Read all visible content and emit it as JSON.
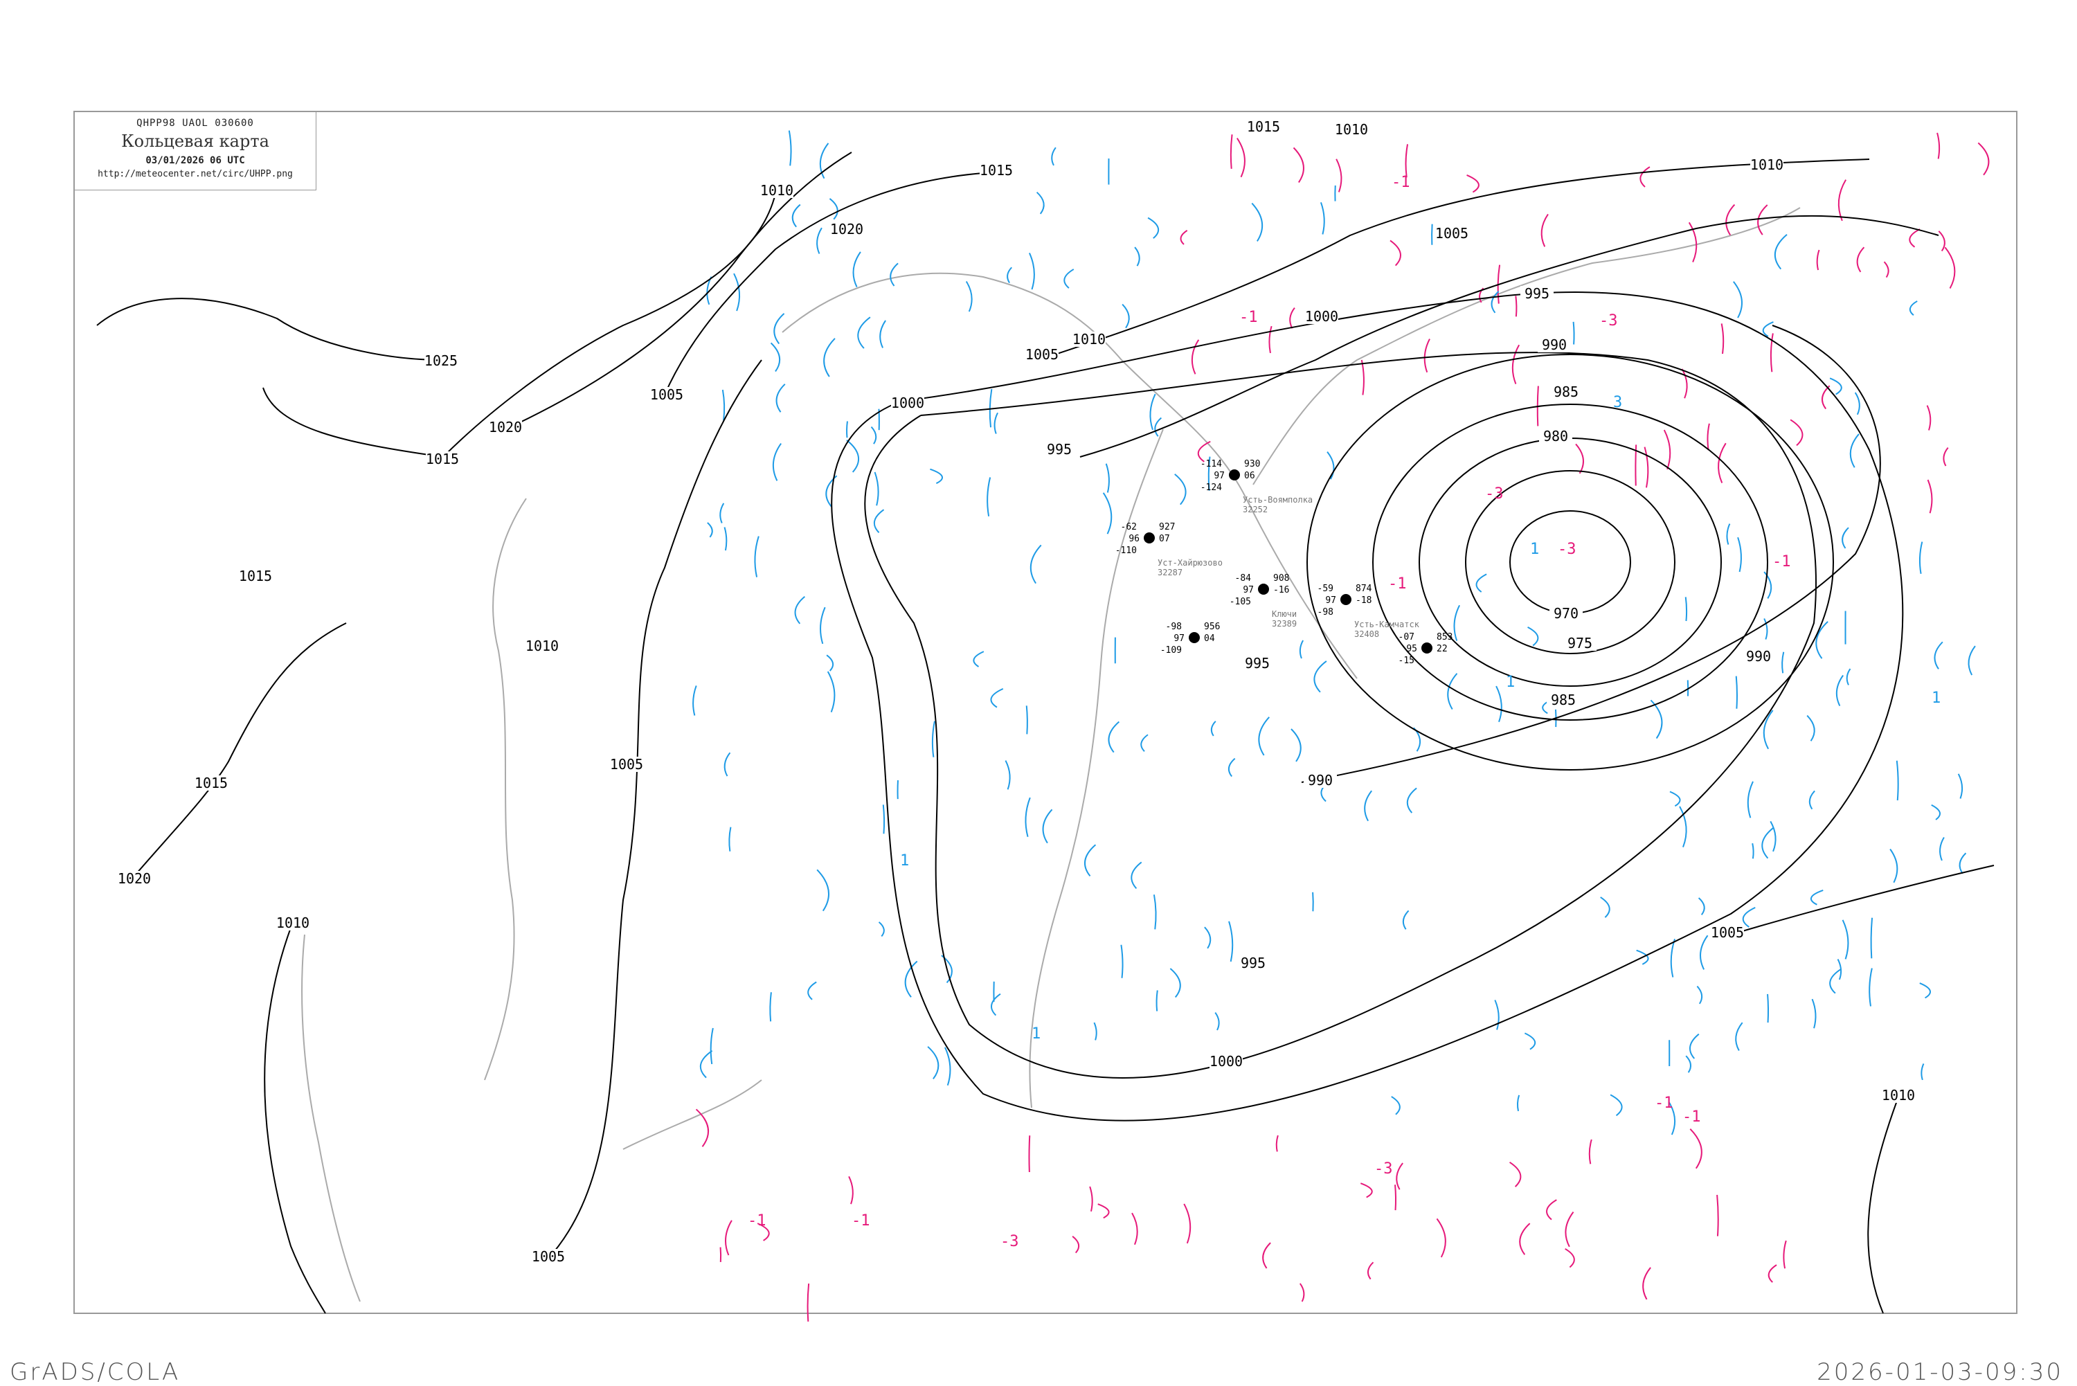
{
  "header": {
    "code": "QHPP98  UAOL  030600",
    "title": "Кольцевая карта",
    "datetime": "03/01/2026 06 UTC",
    "url": "http://meteocenter.net/circ/UHPP.png"
  },
  "footer": {
    "left": "GrADS/COLA",
    "right": "2026-01-03-09:30"
  },
  "colors": {
    "isobar": "#000000",
    "coastline": "#aaaaaa",
    "isotherm_positive": "#1e9be6",
    "isotherm_negative": "#e6197a",
    "snow_marker": "#3399ff",
    "frame": "#999999"
  },
  "isobar_labels": [
    "1015",
    "1010",
    "1015",
    "1010",
    "1020",
    "1005",
    "995",
    "1000",
    "990",
    "985",
    "980",
    "970",
    "975",
    "985",
    "990",
    "1010",
    "1005",
    "1000",
    "995",
    "1025",
    "1020",
    "1015",
    "1005",
    "1015",
    "1010",
    "1005",
    "995",
    "990",
    "1015",
    "1020",
    "1010",
    "995",
    "1000",
    "1005",
    "1010",
    "1005",
    "1010"
  ],
  "isotherm_labels": [
    "-1",
    "-1",
    "-3",
    "3",
    "-3",
    "1",
    "-3",
    "-1",
    "1",
    "-1",
    "1",
    "-1",
    "-3",
    "-1",
    "-1",
    "-3",
    "1",
    "-1",
    "1"
  ],
  "stations": [
    {
      "name": "Усть-Воямполка",
      "id": "32252",
      "temp": "-114",
      "vis": "97",
      "dew": "-124",
      "pressure": "930",
      "tendency": "06"
    },
    {
      "name": "Уст-Хайрюзово",
      "id": "32287",
      "temp": "-62",
      "vis": "96",
      "dew": "-110",
      "pressure": "927",
      "tendency": "07"
    },
    {
      "name": "Ключи",
      "id": "32389",
      "temp": "-84",
      "vis": "97",
      "dew": "-105",
      "pressure": "908",
      "tendency": "-16"
    },
    {
      "name": "Усть-Камчатск",
      "id": "32408",
      "temp": "-59",
      "vis": "97",
      "dew": "-98",
      "pressure": "874",
      "tendency": "-18"
    },
    {
      "name": "",
      "id": "",
      "temp": "-07",
      "vis": "95",
      "dew": "-15",
      "pressure": "853",
      "tendency": "22"
    },
    {
      "name": "",
      "id": "",
      "temp": "-98",
      "vis": "97",
      "dew": "-109",
      "pressure": "956",
      "tendency": "04"
    }
  ]
}
